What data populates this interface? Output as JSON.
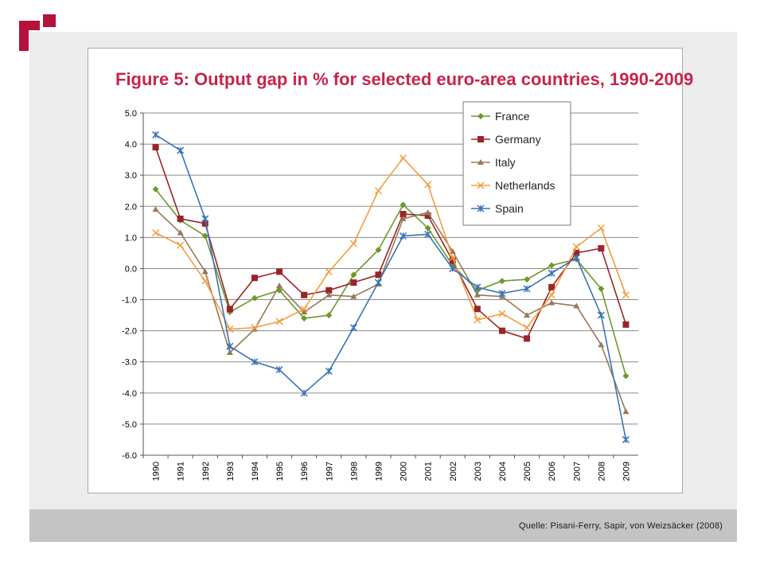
{
  "logo": {
    "icon": "corner-mark-icon",
    "color": "#b5123a"
  },
  "footer": {
    "source": "Quelle: Pisani-Ferry, Sapir, von Weizsäcker (2008)"
  },
  "chart_data": {
    "type": "line",
    "title": "Figure 5: Output gap in % for selected euro-area countries, 1990-2009",
    "title_color": "#c8244d",
    "xlabel": "",
    "ylabel": "",
    "categories": [
      "1990",
      "1991",
      "1992",
      "1993",
      "1994",
      "1995",
      "1996",
      "1997",
      "1998",
      "1999",
      "2000",
      "2001",
      "2002",
      "2003",
      "2004",
      "2005",
      "2006",
      "2007",
      "2008",
      "2009"
    ],
    "ylim": [
      -6.0,
      5.0
    ],
    "yticks": [
      "5.0",
      "4.0",
      "3.0",
      "2.0",
      "1.0",
      "0.0",
      "-1.0",
      "-2.0",
      "-3.0",
      "-4.0",
      "-5.0",
      "-6.0"
    ],
    "grid": true,
    "legend_position": "top-right",
    "series": [
      {
        "name": "France",
        "color": "#6a9a2c",
        "marker": "diamond",
        "values": [
          2.55,
          1.55,
          1.05,
          -1.4,
          -0.95,
          -0.7,
          -1.6,
          -1.5,
          -0.2,
          0.6,
          2.05,
          1.3,
          0.1,
          -0.7,
          -0.4,
          -0.35,
          0.1,
          0.3,
          -0.65,
          -3.45
        ]
      },
      {
        "name": "Germany",
        "color": "#9b2428",
        "marker": "square",
        "values": [
          3.9,
          1.6,
          1.45,
          -1.3,
          -0.3,
          -0.1,
          -0.85,
          -0.7,
          -0.45,
          -0.2,
          1.75,
          1.7,
          0.25,
          -1.3,
          -2.0,
          -2.25,
          -0.6,
          0.5,
          0.65,
          -1.8
        ]
      },
      {
        "name": "Italy",
        "color": "#957a56",
        "marker": "triangle",
        "values": [
          1.9,
          1.15,
          -0.1,
          -2.7,
          -1.95,
          -0.55,
          -1.4,
          -0.85,
          -0.9,
          -0.5,
          1.6,
          1.8,
          0.55,
          -0.85,
          -0.9,
          -1.5,
          -1.1,
          -1.2,
          -2.45,
          -4.6
        ]
      },
      {
        "name": "Netherlands",
        "color": "#f59d3f",
        "marker": "x",
        "values": [
          1.15,
          0.75,
          -0.4,
          -1.95,
          -1.9,
          -1.7,
          -1.3,
          -0.1,
          0.8,
          2.5,
          3.55,
          2.7,
          0.35,
          -1.65,
          -1.45,
          -1.9,
          -0.85,
          0.7,
          1.3,
          -0.85
        ]
      },
      {
        "name": "Spain",
        "color": "#3b73b9",
        "marker": "star",
        "values": [
          4.3,
          3.8,
          1.6,
          -2.5,
          -3.0,
          -3.25,
          -4.0,
          -3.3,
          -1.9,
          -0.45,
          1.05,
          1.1,
          0.0,
          -0.6,
          -0.8,
          -0.65,
          -0.15,
          0.35,
          -1.5,
          -5.5
        ]
      }
    ]
  }
}
